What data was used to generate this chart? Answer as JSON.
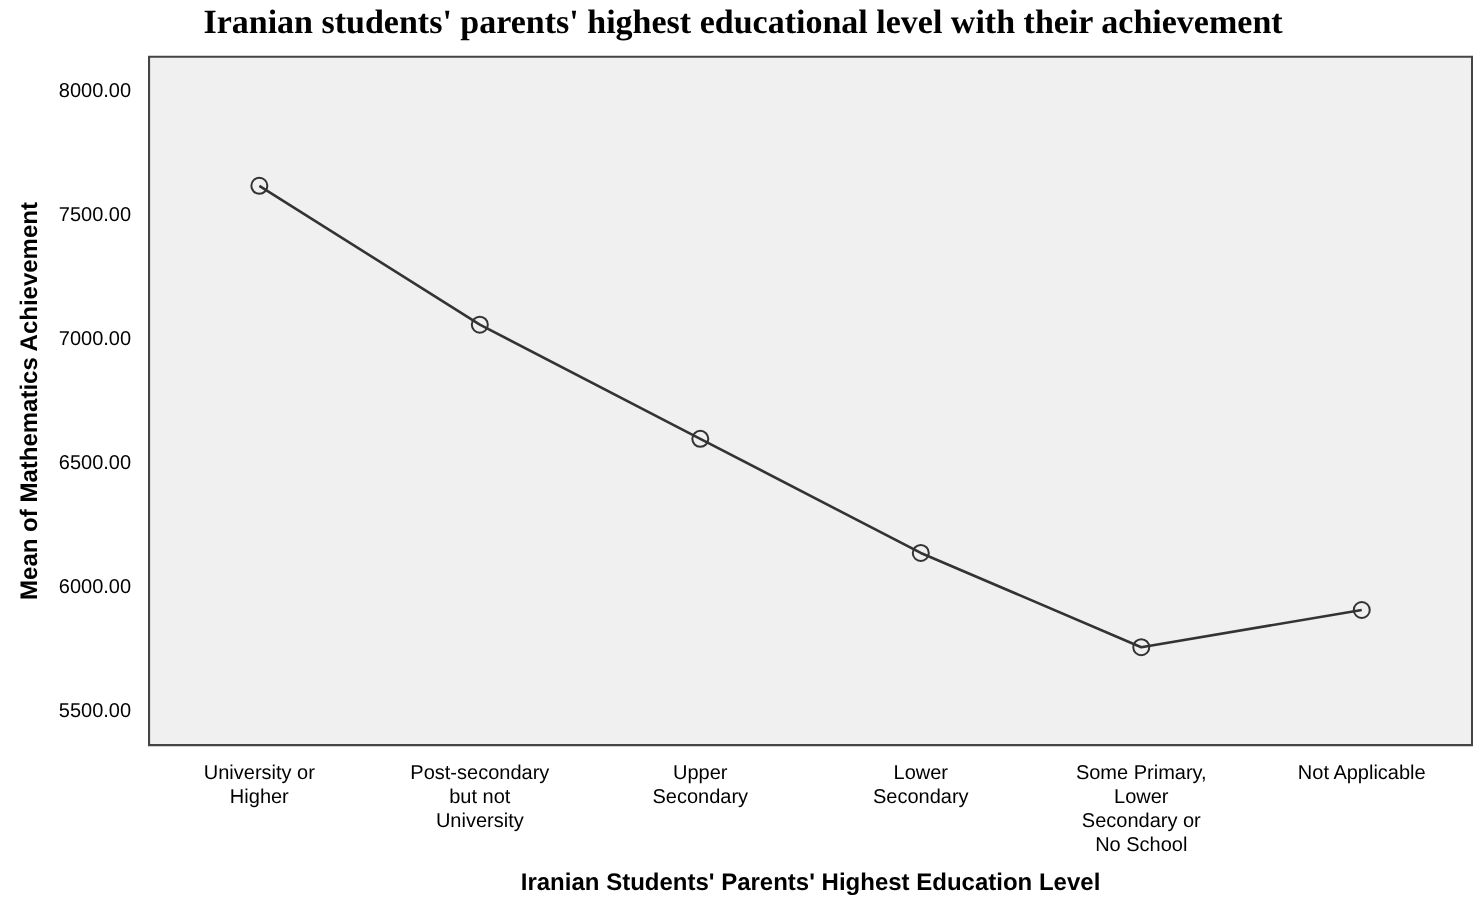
{
  "chart_data": {
    "type": "line",
    "title": "Iranian students' parents' highest educational level with their achievement",
    "xlabel": "Iranian Students' Parents' Highest Education Level",
    "ylabel": "Mean of Mathematics Achievement",
    "categories": [
      "University or\nHigher",
      "Post-secondary\nbut not\nUniversity",
      "Upper\nSecondary",
      "Lower\nSecondary",
      "Some Primary,\nLower\nSecondary or\nNo School",
      "Not Applicable"
    ],
    "series": [
      {
        "color": "#333333",
        "values": [
          7620,
          7060,
          6600,
          6140,
          5760,
          5910
        ]
      }
    ],
    "ylim": [
      5365,
      8140
    ],
    "yticks": [
      {
        "value": 5500,
        "label": "5500.00"
      },
      {
        "value": 6000,
        "label": "6000.00"
      },
      {
        "value": 6500,
        "label": "6500.00"
      },
      {
        "value": 7000,
        "label": "7000.00"
      },
      {
        "value": 7500,
        "label": "7500.00"
      },
      {
        "value": 8000,
        "label": "8000.00"
      }
    ],
    "grid": false,
    "legend": false,
    "marker": "circle",
    "line_style": "solid"
  }
}
